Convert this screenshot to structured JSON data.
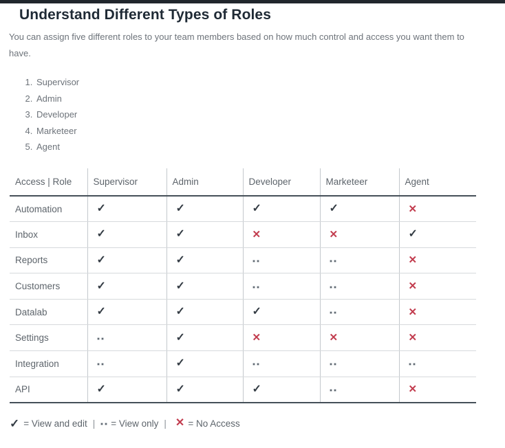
{
  "page": {
    "title": "Understand Different Types of Roles",
    "intro": "You can assign five different roles to your team members based on how much control and access you want them to have."
  },
  "roles_list": [
    "Supervisor",
    "Admin",
    "Developer",
    "Marketeer",
    "Agent"
  ],
  "table": {
    "headers": [
      "Access | Role",
      "Supervisor",
      "Admin",
      "Developer",
      "Marketeer",
      "Agent"
    ],
    "rows": [
      {
        "feature": "Automation",
        "access": [
          "edit",
          "edit",
          "edit",
          "edit",
          "none"
        ]
      },
      {
        "feature": "Inbox",
        "access": [
          "edit",
          "edit",
          "none",
          "none",
          "edit"
        ]
      },
      {
        "feature": "Reports",
        "access": [
          "edit",
          "edit",
          "view",
          "view",
          "none"
        ]
      },
      {
        "feature": "Customers",
        "access": [
          "edit",
          "edit",
          "view",
          "view",
          "none"
        ]
      },
      {
        "feature": "Datalab",
        "access": [
          "edit",
          "edit",
          "edit",
          "view",
          "none"
        ]
      },
      {
        "feature": "Settings",
        "access": [
          "view",
          "edit",
          "none",
          "none",
          "none"
        ]
      },
      {
        "feature": "Integration",
        "access": [
          "view",
          "edit",
          "view",
          "view",
          "view"
        ]
      },
      {
        "feature": "API",
        "access": [
          "edit",
          "edit",
          "edit",
          "view",
          "none"
        ]
      }
    ]
  },
  "legend": {
    "icons": {
      "check": "✓",
      "cross": "✕"
    },
    "items": [
      {
        "icon": "check",
        "label": "= View and edit"
      },
      {
        "icon": "dots",
        "label": "= View only"
      },
      {
        "icon": "cross",
        "label": "= No Access"
      }
    ],
    "separator": "|"
  },
  "colors": {
    "top_bar": "#21272d",
    "check": "#343c44",
    "cross": "#c23c4e",
    "dark_border": "#454f58"
  }
}
